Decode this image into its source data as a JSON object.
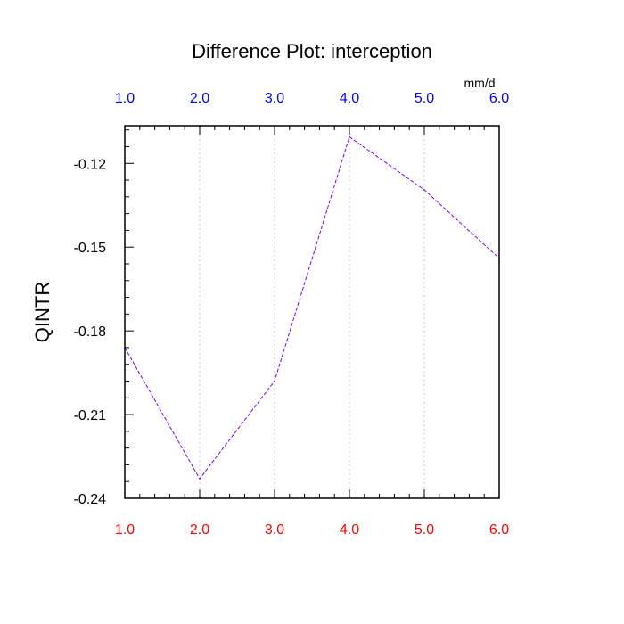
{
  "chart_data": {
    "type": "line",
    "title": "Difference Plot: interception",
    "units": "mm/d",
    "ylabel": "QINTR",
    "x": [
      1.0,
      2.0,
      3.0,
      4.0,
      5.0,
      6.0
    ],
    "x_tick_labels": [
      "1.0",
      "2.0",
      "3.0",
      "4.0",
      "5.0",
      "6.0"
    ],
    "y_tick_values": [
      -0.12,
      -0.15,
      -0.18,
      -0.21,
      -0.24
    ],
    "y_tick_labels": [
      "-0.12",
      "-0.15",
      "-0.18",
      "-0.21",
      -0.24
    ],
    "series": [
      {
        "values": [
          -0.186,
          -0.233,
          -0.198,
          -0.1105,
          -0.1295,
          -0.154
        ]
      }
    ],
    "xlim": [
      1.0,
      6.0
    ],
    "ylim": [
      -0.24,
      -0.1065
    ],
    "grid": "vertical dotted lines at x ticks",
    "colors": {
      "top_tick_labels": "#0000ff",
      "bottom_tick_labels": "#ff0000",
      "series_line": "#7a00ff",
      "axes": "#000000",
      "grid": "#c8c8c8"
    }
  }
}
